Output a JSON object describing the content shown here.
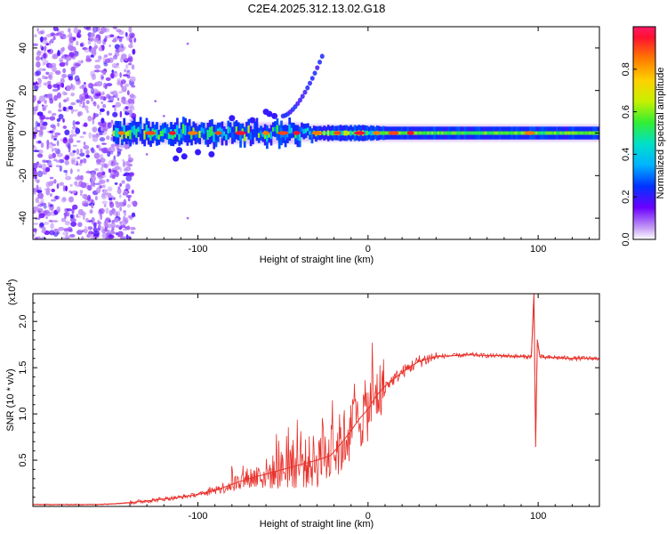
{
  "title": "C2E4.2025.312.13.02.G18",
  "chart_data": [
    {
      "type": "heatmap",
      "name": "spectrogram",
      "xlabel": "Height of straight line (km)",
      "ylabel": "Frequency (Hz)",
      "xlim": [
        -197,
        136
      ],
      "ylim": [
        -50,
        50
      ],
      "x_ticks": [
        -100,
        0,
        100
      ],
      "y_ticks": [
        40,
        20,
        0,
        -20,
        -40
      ],
      "colorbar": {
        "label": "Normalized spectral amplitude",
        "range": [
          0,
          1
        ],
        "ticks": [
          "0.0",
          "0.2",
          "0.4",
          "0.6",
          "0.8"
        ],
        "tick_values": [
          0,
          0.2,
          0.4,
          0.6,
          0.8
        ]
      }
    },
    {
      "type": "line",
      "name": "snr",
      "xlabel": "Height of straight line (km)",
      "ylabel": "SNR (10 * v/v)",
      "y_scale_label": "(x10",
      "y_scale_exp": "4",
      "xlim": [
        -197,
        136
      ],
      "ylim": [
        0,
        2.3
      ],
      "x_ticks": [
        -100,
        0,
        100
      ],
      "y_ticks": [
        "0.5",
        "1.0",
        "1.5",
        "2.0"
      ],
      "y_tick_values": [
        0.5,
        1.0,
        1.5,
        2.0
      ],
      "color": "#e8302a",
      "series": [
        {
          "name": "SNR",
          "x": [
            -197,
            -160,
            -148,
            -140,
            -130,
            -120,
            -110,
            -100,
            -90,
            -80,
            -70,
            -60,
            -50,
            -40,
            -30,
            -22,
            -15,
            -10,
            -5,
            0,
            5,
            10,
            20,
            30,
            40,
            50,
            60,
            70,
            80,
            90,
            96,
            97.5,
            98.5,
            99.5,
            101,
            104,
            110,
            120,
            136
          ],
          "y": [
            0.02,
            0.02,
            0.03,
            0.04,
            0.06,
            0.08,
            0.1,
            0.13,
            0.17,
            0.24,
            0.3,
            0.35,
            0.4,
            0.45,
            0.5,
            0.55,
            0.7,
            0.82,
            0.95,
            1.05,
            1.2,
            1.3,
            1.45,
            1.57,
            1.62,
            1.63,
            1.64,
            1.63,
            1.63,
            1.62,
            1.62,
            2.3,
            0.65,
            1.8,
            1.62,
            1.61,
            1.61,
            1.6,
            1.6
          ]
        }
      ]
    }
  ]
}
